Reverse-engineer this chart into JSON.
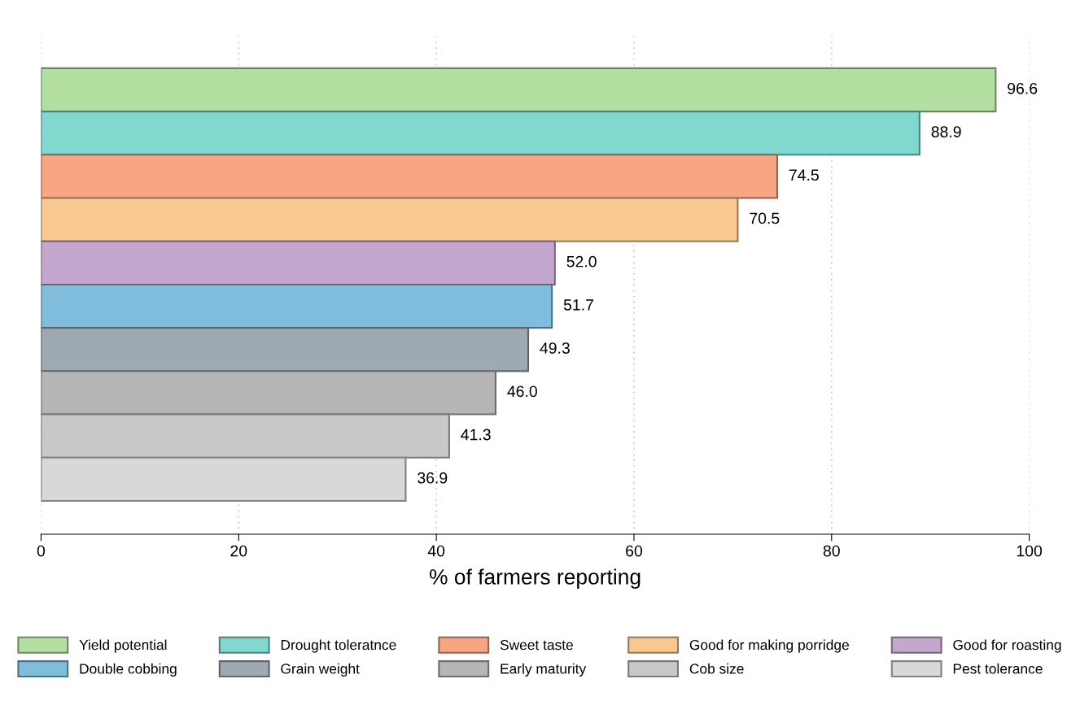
{
  "chart_data": {
    "type": "bar",
    "orientation": "horizontal",
    "xlabel": "% of farmers reporting",
    "categories": [
      null
    ],
    "series": [
      {
        "name": "Yield potential",
        "color": "#b3dfa0",
        "values": [
          96.6
        ],
        "value_labels": [
          "96.6"
        ]
      },
      {
        "name": "Drought toleratnce",
        "color": "#80d8cf",
        "values": [
          88.9
        ],
        "value_labels": [
          "88.9"
        ]
      },
      {
        "name": "Sweet taste",
        "color": "#f7a582",
        "values": [
          74.5
        ],
        "value_labels": [
          "74.5"
        ]
      },
      {
        "name": "Good for making porridge",
        "color": "#f9c891",
        "values": [
          70.5
        ],
        "value_labels": [
          "70.5"
        ]
      },
      {
        "name": "Good for roasting",
        "color": "#c4a7cf",
        "values": [
          52
        ],
        "value_labels": [
          "52.0"
        ]
      },
      {
        "name": "Double cobbing",
        "color": "#80bcdc",
        "values": [
          51.7
        ],
        "value_labels": [
          "51.7"
        ]
      },
      {
        "name": "Grain weight",
        "color": "#9ea9b2",
        "values": [
          49.3
        ],
        "value_labels": [
          "49.3"
        ]
      },
      {
        "name": "Early maturity",
        "color": "#b6b6b6",
        "values": [
          46
        ],
        "value_labels": [
          "46.0"
        ]
      },
      {
        "name": "Cob size",
        "color": "#c8c8c8",
        "values": [
          41.3
        ],
        "value_labels": [
          "41.3"
        ]
      },
      {
        "name": "Pest tolerance",
        "color": "#d8d8d8",
        "values": [
          36.9
        ],
        "value_labels": [
          "36.9"
        ]
      }
    ],
    "xlim": [
      0,
      100
    ],
    "xticks": [
      0,
      20,
      40,
      60,
      80,
      100
    ],
    "grid": "x",
    "legend": "bottom"
  }
}
